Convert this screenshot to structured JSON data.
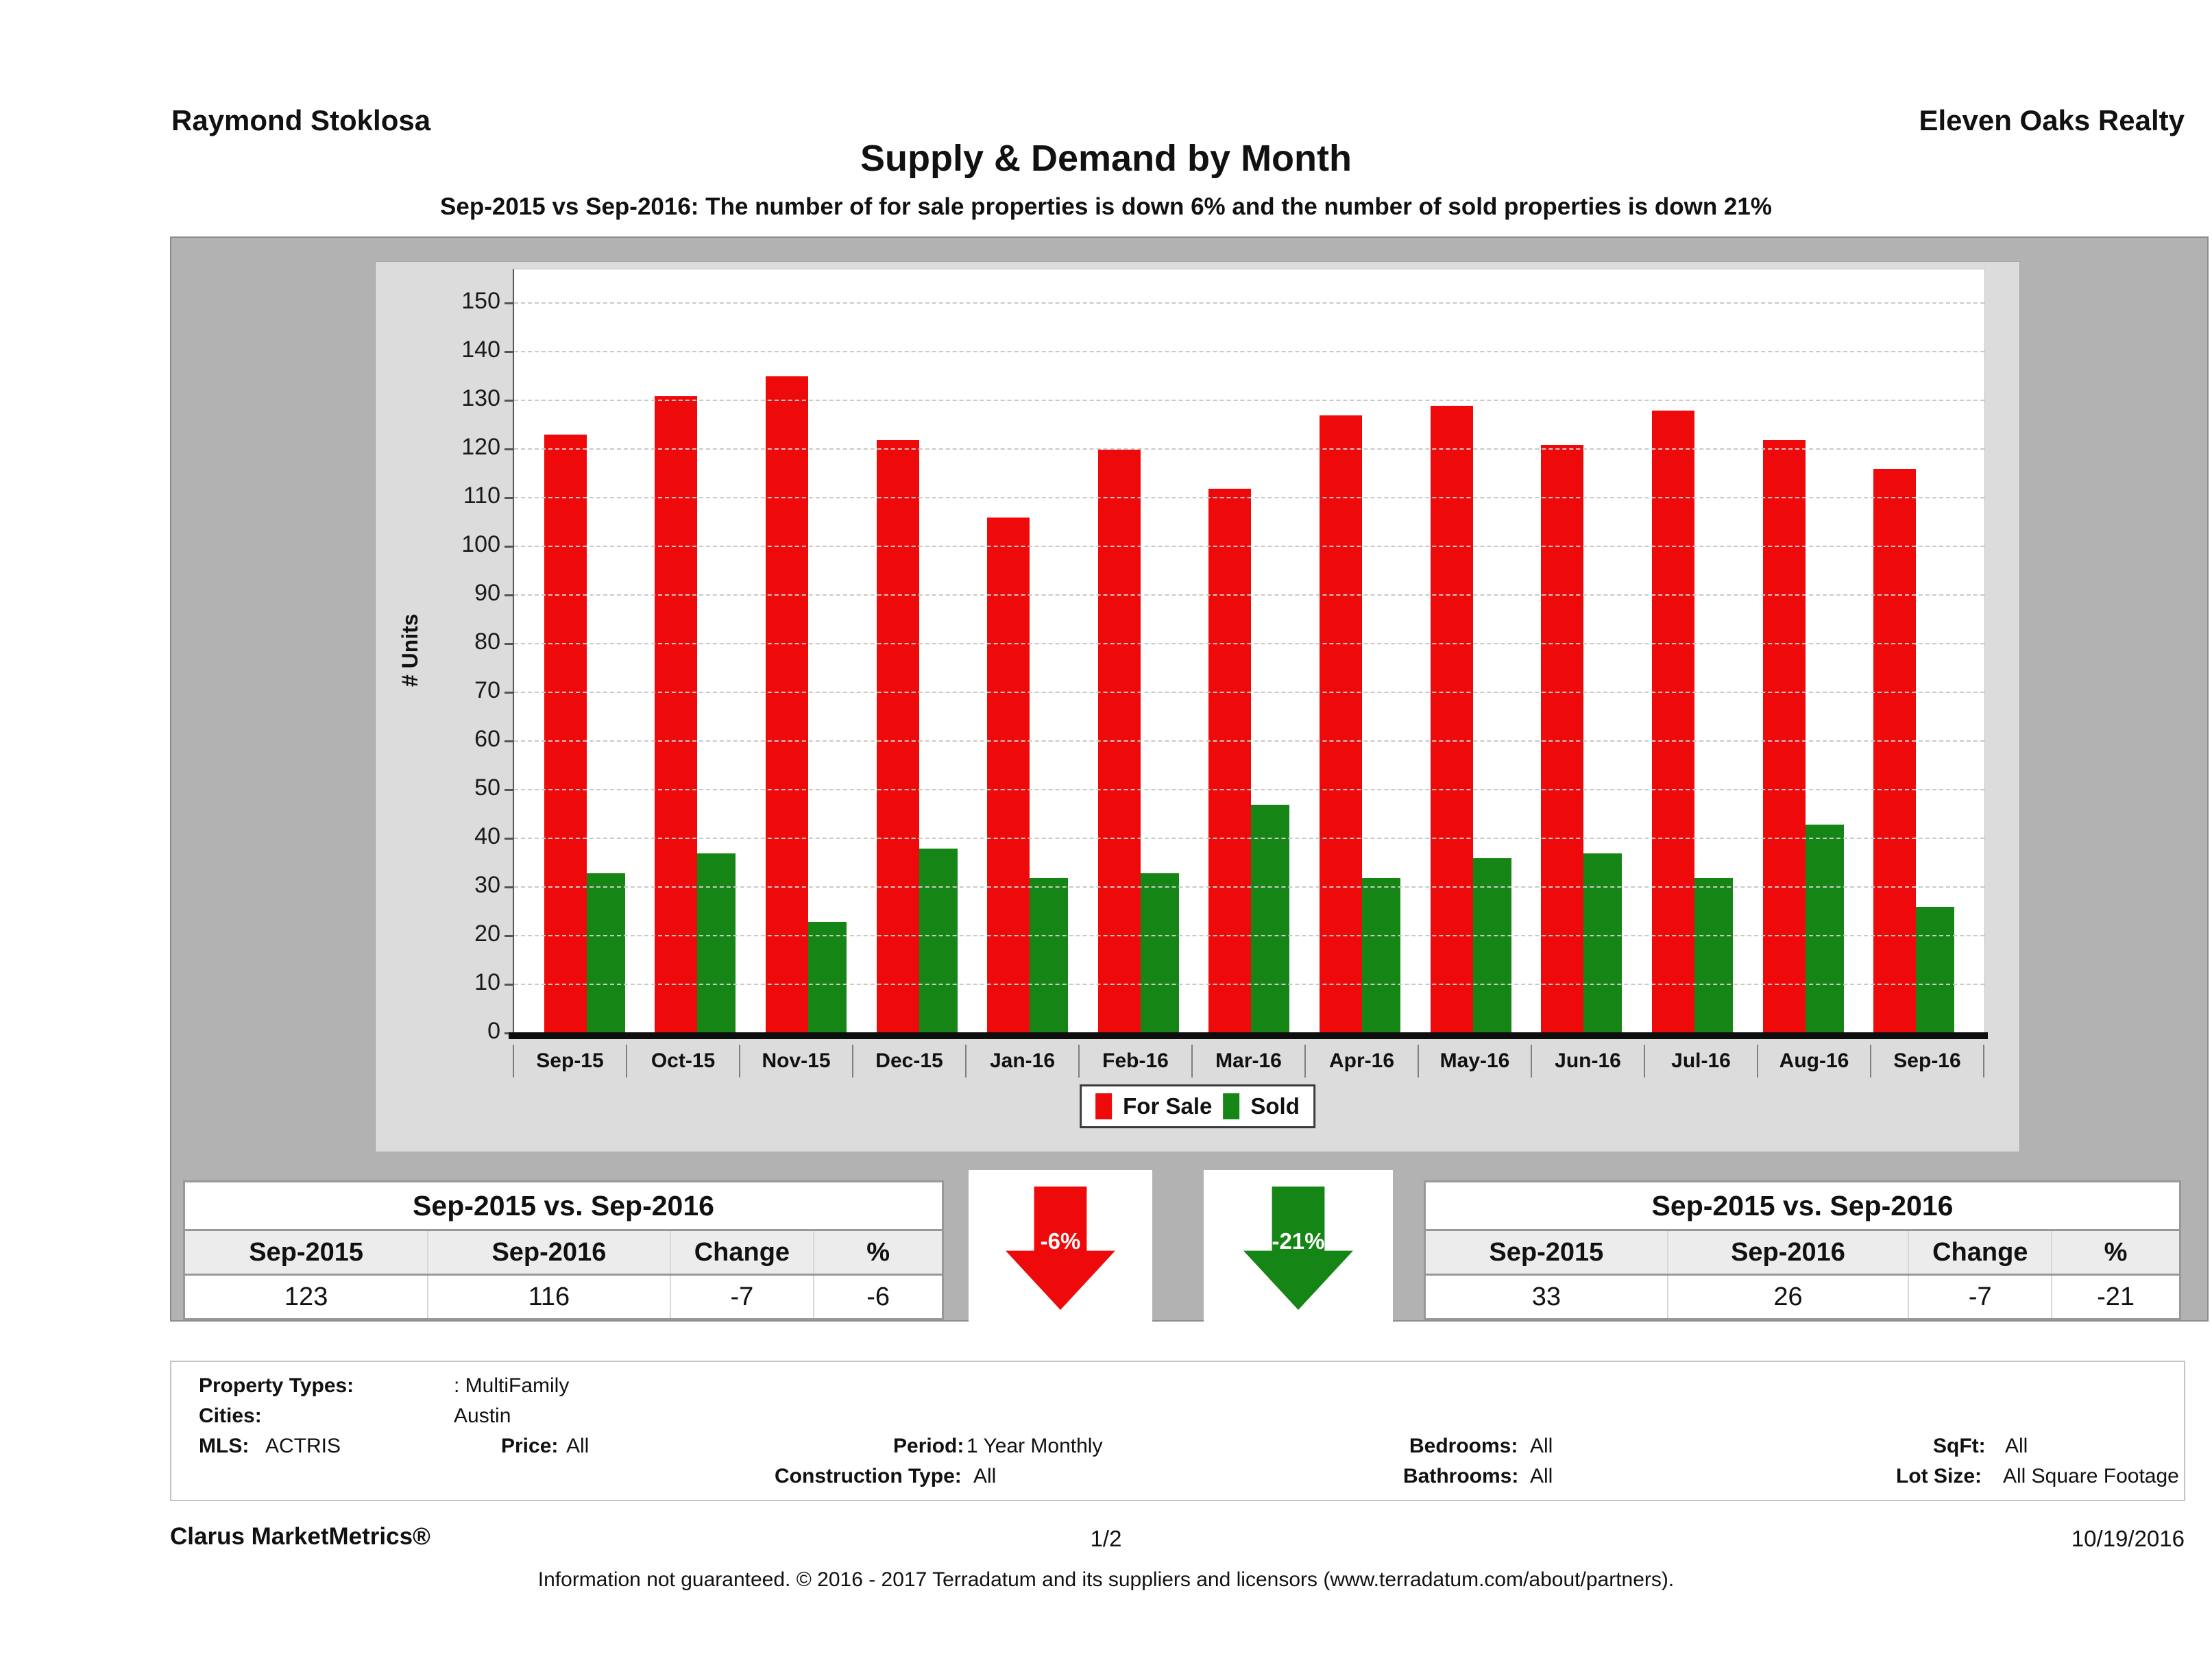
{
  "header": {
    "agent": "Raymond Stoklosa",
    "company": "Eleven Oaks Realty",
    "title": "Supply & Demand by Month",
    "subtitle": "Sep-2015 vs Sep-2016: The number of for sale properties is down 6% and the number of sold properties is down 21%"
  },
  "chart_data": {
    "type": "bar",
    "categories": [
      "Sep-15",
      "Oct-15",
      "Nov-15",
      "Dec-15",
      "Jan-16",
      "Feb-16",
      "Mar-16",
      "Apr-16",
      "May-16",
      "Jun-16",
      "Jul-16",
      "Aug-16",
      "Sep-16"
    ],
    "series": [
      {
        "name": "For Sale",
        "color": "#ee0a0a",
        "values": [
          123,
          131,
          135,
          122,
          106,
          120,
          112,
          127,
          129,
          121,
          128,
          122,
          116
        ]
      },
      {
        "name": "Sold",
        "color": "#158515",
        "values": [
          33,
          37,
          23,
          38,
          32,
          33,
          47,
          32,
          36,
          37,
          32,
          43,
          26
        ]
      }
    ],
    "title": "Supply & Demand by Month",
    "xlabel": "",
    "ylabel": "# Units",
    "ylim": [
      0,
      157
    ],
    "yticks": [
      0,
      10,
      20,
      30,
      40,
      50,
      60,
      70,
      80,
      90,
      100,
      110,
      120,
      130,
      140,
      150
    ],
    "grid": "horizontal-dashed",
    "legend_position": "bottom-center"
  },
  "summary_left": {
    "title": "Sep-2015 vs. Sep-2016",
    "columns": [
      "Sep-2015",
      "Sep-2016",
      "Change",
      "%"
    ],
    "values": [
      "123",
      "116",
      "-7",
      "-6"
    ]
  },
  "summary_right": {
    "title": "Sep-2015 vs. Sep-2016",
    "columns": [
      "Sep-2015",
      "Sep-2016",
      "Change",
      "%"
    ],
    "values": [
      "33",
      "26",
      "-7",
      "-21"
    ]
  },
  "summary_arrows": {
    "for_sale": {
      "label": "-6%",
      "color": "#ee0a0a",
      "direction": "down"
    },
    "sold": {
      "label": "-21%",
      "color": "#158515",
      "direction": "down"
    }
  },
  "filters": {
    "property_types_label": "Property Types:",
    "property_types_value": ": MultiFamily",
    "cities_label": "Cities:",
    "cities_value": "Austin",
    "mls_label": "MLS:",
    "mls_value": "ACTRIS",
    "price_label": "Price:",
    "price_value": "All",
    "period_label": "Period:",
    "period_value": "1 Year Monthly",
    "construction_label": "Construction Type:",
    "construction_value": "All",
    "bedrooms_label": "Bedrooms:",
    "bedrooms_value": "All",
    "bathrooms_label": "Bathrooms:",
    "bathrooms_value": "All",
    "sqft_label": "SqFt:",
    "sqft_value": "All",
    "lotsize_label": "Lot Size:",
    "lotsize_value": "All Square Footage"
  },
  "footer": {
    "brand": "Clarus MarketMetrics®",
    "page": "1/2",
    "date": "10/19/2016",
    "disclaimer": "Information not guaranteed. © 2016 - 2017 Terradatum and its suppliers and licensors (www.terradatum.com/about/partners)."
  }
}
